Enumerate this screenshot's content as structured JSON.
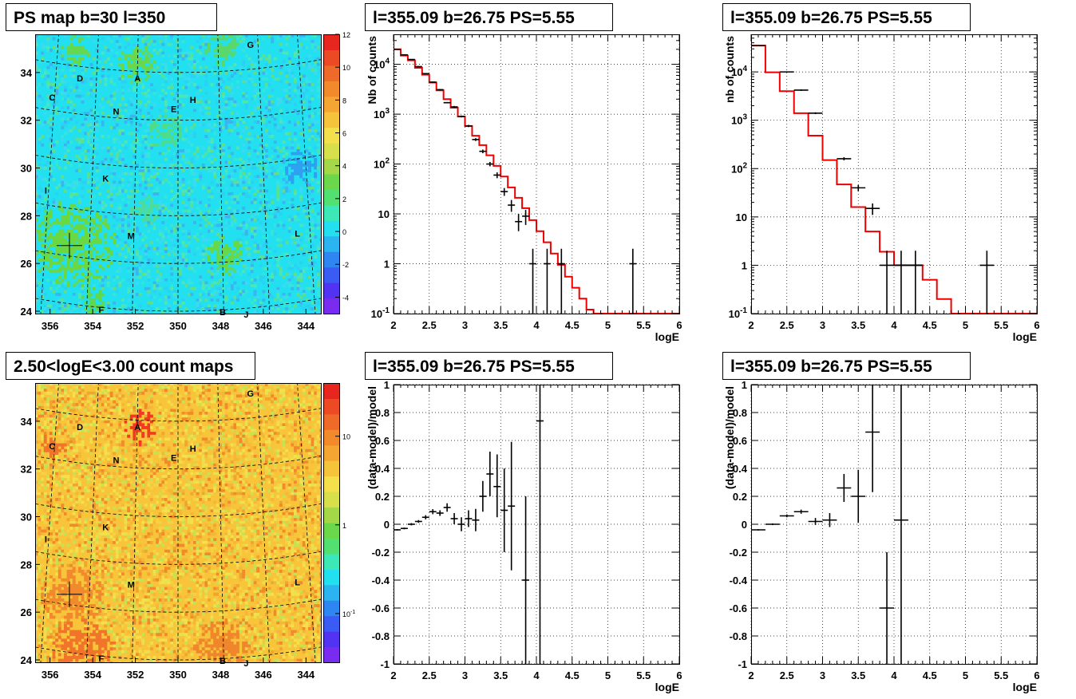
{
  "chart_data": [
    {
      "type": "heatmap",
      "title": "PS map b=30 l=350",
      "x_ticks": [
        "356",
        "354",
        "352",
        "350",
        "348",
        "346",
        "344"
      ],
      "y_ticks": [
        "24",
        "26",
        "28",
        "30",
        "32",
        "34"
      ],
      "colorbar_ticks": [
        "-4",
        "-2",
        "0",
        "2",
        "4",
        "6",
        "8",
        "10",
        "12"
      ],
      "colorbar_range": [
        -5,
        12
      ],
      "xlim": [
        356.7,
        343.3
      ],
      "ylim": [
        23.9,
        35.6
      ],
      "background_color": "#22e0f0",
      "sources": [
        {
          "label": "A",
          "l": 351.9,
          "b": 33.8
        },
        {
          "label": "B",
          "l": 347.9,
          "b": 24.0
        },
        {
          "label": "C",
          "l": 355.9,
          "b": 33.0
        },
        {
          "label": "D",
          "l": 354.6,
          "b": 33.8
        },
        {
          "label": "E",
          "l": 350.2,
          "b": 32.5
        },
        {
          "label": "F",
          "l": 353.6,
          "b": 24.1
        },
        {
          "label": "G",
          "l": 346.6,
          "b": 35.2
        },
        {
          "label": "H",
          "l": 349.3,
          "b": 32.9
        },
        {
          "label": "I",
          "l": 356.2,
          "b": 29.1
        },
        {
          "label": "J",
          "l": 346.8,
          "b": 23.9
        },
        {
          "label": "K",
          "l": 353.4,
          "b": 29.6
        },
        {
          "label": "L",
          "l": 344.4,
          "b": 27.3
        },
        {
          "label": "M",
          "l": 352.2,
          "b": 27.2
        },
        {
          "label": "N",
          "l": 352.9,
          "b": 32.4
        }
      ],
      "marker": {
        "l": 355.09,
        "b": 26.75
      }
    },
    {
      "type": "line",
      "title": "l=355.09 b=26.75 PS=5.55",
      "xlabel": "logE",
      "ylabel": "Nb of counts",
      "xlim": [
        2,
        6
      ],
      "ylim": [
        0.1,
        40000
      ],
      "yscale": "log",
      "x_ticks": [
        "2",
        "2.5",
        "3",
        "3.5",
        "4",
        "4.5",
        "5",
        "5.5",
        "6"
      ],
      "y_ticks": [
        {
          "v": 0.1,
          "label": "10^-1"
        },
        {
          "v": 1,
          "label": "1"
        },
        {
          "v": 10,
          "label": "10"
        },
        {
          "v": 100,
          "label": "10^2"
        },
        {
          "v": 1000,
          "label": "10^3"
        },
        {
          "v": 10000,
          "label": "10^4"
        }
      ],
      "model_bin_width": 0.1,
      "model": [
        20000,
        15000,
        12000,
        8500,
        6200,
        4300,
        3000,
        2000,
        1350,
        900,
        580,
        370,
        240,
        150,
        92,
        56,
        34,
        21,
        13,
        7.5,
        4.5,
        2.7,
        1.6,
        0.95,
        0.55,
        0.33,
        0.2,
        0.12,
        0.1,
        0.1,
        0.1,
        0.1,
        0.1,
        0.1,
        0.1,
        0.1,
        0.1,
        0.1,
        0.1,
        0.1
      ],
      "data": [
        {
          "x": 2.05,
          "y": 20000,
          "ylo": 19800,
          "yhi": 20200
        },
        {
          "x": 2.15,
          "y": 15500,
          "ylo": 15300,
          "yhi": 15700
        },
        {
          "x": 2.25,
          "y": 12500,
          "ylo": 12300,
          "yhi": 12700
        },
        {
          "x": 2.35,
          "y": 9000,
          "ylo": 8800,
          "yhi": 9200
        },
        {
          "x": 2.45,
          "y": 6500,
          "ylo": 6350,
          "yhi": 6650
        },
        {
          "x": 2.55,
          "y": 4400,
          "ylo": 4280,
          "yhi": 4520
        },
        {
          "x": 2.65,
          "y": 3100,
          "ylo": 3000,
          "yhi": 3200
        },
        {
          "x": 2.75,
          "y": 1700,
          "ylo": 1650,
          "yhi": 1750
        },
        {
          "x": 2.85,
          "y": 1400,
          "ylo": 1340,
          "yhi": 1460
        },
        {
          "x": 2.95,
          "y": 900,
          "ylo": 860,
          "yhi": 940
        },
        {
          "x": 3.05,
          "y": 580,
          "ylo": 550,
          "yhi": 610
        },
        {
          "x": 3.15,
          "y": 310,
          "ylo": 290,
          "yhi": 330
        },
        {
          "x": 3.25,
          "y": 180,
          "ylo": 165,
          "yhi": 195
        },
        {
          "x": 3.35,
          "y": 100,
          "ylo": 90,
          "yhi": 110
        },
        {
          "x": 3.45,
          "y": 60,
          "ylo": 52,
          "yhi": 68
        },
        {
          "x": 3.55,
          "y": 28,
          "ylo": 23,
          "yhi": 33
        },
        {
          "x": 3.65,
          "y": 15,
          "ylo": 11,
          "yhi": 19
        },
        {
          "x": 3.75,
          "y": 7,
          "ylo": 4.5,
          "yhi": 10
        },
        {
          "x": 3.85,
          "y": 9,
          "ylo": 6,
          "yhi": 12
        },
        {
          "x": 3.95,
          "y": 1,
          "ylo": 0.1,
          "yhi": 2
        },
        {
          "x": 4.15,
          "y": 1,
          "ylo": 0.1,
          "yhi": 2
        },
        {
          "x": 4.35,
          "y": 1,
          "ylo": 0.1,
          "yhi": 2
        },
        {
          "x": 5.35,
          "y": 1,
          "ylo": 0.1,
          "yhi": 2
        }
      ]
    },
    {
      "type": "line",
      "title": "l=355.09 b=26.75 PS=5.55",
      "xlabel": "logE",
      "ylabel": "nb of counts",
      "xlim": [
        2,
        6
      ],
      "ylim": [
        0.1,
        60000
      ],
      "yscale": "log",
      "x_ticks": [
        "2",
        "2.5",
        "3",
        "3.5",
        "4",
        "4.5",
        "5",
        "5.5",
        "6"
      ],
      "y_ticks": [
        {
          "v": 0.1,
          "label": "10^-1"
        },
        {
          "v": 1,
          "label": "1"
        },
        {
          "v": 10,
          "label": "10"
        },
        {
          "v": 100,
          "label": "10^2"
        },
        {
          "v": 1000,
          "label": "10^3"
        },
        {
          "v": 10000,
          "label": "10^4"
        }
      ],
      "model_bin_width": 0.2,
      "model": [
        35000,
        9800,
        4000,
        1400,
        480,
        150,
        47,
        16,
        5,
        1.9,
        1,
        1,
        0.5,
        0.2,
        0.1,
        0.1,
        0.1,
        0.1,
        0.1,
        0.1
      ],
      "data": [
        {
          "x": 2.1,
          "y": 35000,
          "ylo": 34500,
          "yhi": 35500
        },
        {
          "x": 2.5,
          "y": 10000,
          "ylo": 9800,
          "yhi": 10200
        },
        {
          "x": 2.7,
          "y": 4200,
          "ylo": 4050,
          "yhi": 4350
        },
        {
          "x": 2.9,
          "y": 1400,
          "ylo": 1340,
          "yhi": 1460
        },
        {
          "x": 3.3,
          "y": 160,
          "ylo": 148,
          "yhi": 172
        },
        {
          "x": 3.5,
          "y": 40,
          "ylo": 34,
          "yhi": 46
        },
        {
          "x": 3.7,
          "y": 15,
          "ylo": 11,
          "yhi": 19
        },
        {
          "x": 3.9,
          "y": 1,
          "ylo": 0.1,
          "yhi": 2
        },
        {
          "x": 4.1,
          "y": 1,
          "ylo": 0.1,
          "yhi": 2
        },
        {
          "x": 4.3,
          "y": 1,
          "ylo": 0.1,
          "yhi": 2
        },
        {
          "x": 5.3,
          "y": 1,
          "ylo": 0.1,
          "yhi": 2
        }
      ]
    },
    {
      "type": "heatmap",
      "title": "2.50<logE<3.00 count maps",
      "x_ticks": [
        "356",
        "354",
        "352",
        "350",
        "348",
        "346",
        "344"
      ],
      "y_ticks": [
        "24",
        "26",
        "28",
        "30",
        "32",
        "34"
      ],
      "colorbar_ticks": [
        "10",
        "1",
        "10^-1"
      ],
      "colorbar_scale": "log",
      "xlim": [
        356.7,
        343.3
      ],
      "ylim": [
        23.9,
        35.6
      ],
      "background_color": "#f7c43a",
      "sources": [
        {
          "label": "A",
          "l": 351.9,
          "b": 33.8
        },
        {
          "label": "B",
          "l": 347.9,
          "b": 24.0
        },
        {
          "label": "C",
          "l": 355.9,
          "b": 33.0
        },
        {
          "label": "D",
          "l": 354.6,
          "b": 33.8
        },
        {
          "label": "E",
          "l": 350.2,
          "b": 32.5
        },
        {
          "label": "F",
          "l": 353.6,
          "b": 24.1
        },
        {
          "label": "G",
          "l": 346.6,
          "b": 35.2
        },
        {
          "label": "H",
          "l": 349.3,
          "b": 32.9
        },
        {
          "label": "I",
          "l": 356.2,
          "b": 29.1
        },
        {
          "label": "J",
          "l": 346.8,
          "b": 23.9
        },
        {
          "label": "K",
          "l": 353.4,
          "b": 29.6
        },
        {
          "label": "L",
          "l": 344.4,
          "b": 27.3
        },
        {
          "label": "M",
          "l": 352.2,
          "b": 27.2
        },
        {
          "label": "N",
          "l": 352.9,
          "b": 32.4
        }
      ],
      "marker": {
        "l": 355.09,
        "b": 26.75
      }
    },
    {
      "type": "scatter",
      "title": "l=355.09 b=26.75 PS=5.55",
      "xlabel": "logE",
      "ylabel": "(data-model)/model",
      "xlim": [
        2,
        6
      ],
      "ylim": [
        -1,
        1
      ],
      "x_ticks": [
        "2",
        "2.5",
        "3",
        "3.5",
        "4",
        "4.5",
        "5",
        "5.5",
        "6"
      ],
      "y_ticks": [
        "-1",
        "-0.8",
        "-0.6",
        "-0.4",
        "-0.2",
        "0",
        "0.2",
        "0.4",
        "0.6",
        "0.8",
        "1"
      ],
      "bin_width": 0.1,
      "data": [
        {
          "x": 2.05,
          "y": -0.04,
          "ylo": -0.045,
          "yhi": -0.035
        },
        {
          "x": 2.15,
          "y": -0.03,
          "ylo": -0.036,
          "yhi": -0.024
        },
        {
          "x": 2.25,
          "y": 0.0,
          "ylo": -0.008,
          "yhi": 0.008
        },
        {
          "x": 2.35,
          "y": 0.02,
          "ylo": 0.01,
          "yhi": 0.03
        },
        {
          "x": 2.45,
          "y": 0.05,
          "ylo": 0.035,
          "yhi": 0.065
        },
        {
          "x": 2.55,
          "y": 0.09,
          "ylo": 0.072,
          "yhi": 0.108
        },
        {
          "x": 2.65,
          "y": 0.08,
          "ylo": 0.06,
          "yhi": 0.1
        },
        {
          "x": 2.75,
          "y": 0.12,
          "ylo": 0.09,
          "yhi": 0.15
        },
        {
          "x": 2.85,
          "y": 0.04,
          "ylo": 0.0,
          "yhi": 0.08
        },
        {
          "x": 2.95,
          "y": 0.0,
          "ylo": -0.05,
          "yhi": 0.05
        },
        {
          "x": 3.05,
          "y": 0.04,
          "ylo": -0.02,
          "yhi": 0.1
        },
        {
          "x": 3.15,
          "y": 0.03,
          "ylo": -0.05,
          "yhi": 0.11
        },
        {
          "x": 3.25,
          "y": 0.2,
          "ylo": 0.09,
          "yhi": 0.31
        },
        {
          "x": 3.35,
          "y": 0.36,
          "ylo": 0.2,
          "yhi": 0.52
        },
        {
          "x": 3.45,
          "y": 0.27,
          "ylo": 0.05,
          "yhi": 0.5
        },
        {
          "x": 3.55,
          "y": 0.1,
          "ylo": -0.2,
          "yhi": 0.4
        },
        {
          "x": 3.65,
          "y": 0.13,
          "ylo": -0.33,
          "yhi": 0.59
        },
        {
          "x": 3.85,
          "y": -0.4,
          "ylo": -1.0,
          "yhi": 0.2
        },
        {
          "x": 4.05,
          "y": 0.74,
          "ylo": -1.0,
          "yhi": 1.0
        }
      ]
    },
    {
      "type": "scatter",
      "title": "l=355.09 b=26.75 PS=5.55",
      "xlabel": "logE",
      "ylabel": "(data-model)/model",
      "xlim": [
        2,
        6
      ],
      "ylim": [
        -1,
        1
      ],
      "x_ticks": [
        "2",
        "2.5",
        "3",
        "3.5",
        "4",
        "4.5",
        "5",
        "5.5",
        "6"
      ],
      "y_ticks": [
        "-1",
        "-0.8",
        "-0.6",
        "-0.4",
        "-0.2",
        "0",
        "0.2",
        "0.4",
        "0.6",
        "0.8",
        "1"
      ],
      "bin_width": 0.2,
      "data": [
        {
          "x": 2.1,
          "y": -0.04,
          "ylo": -0.045,
          "yhi": -0.035
        },
        {
          "x": 2.3,
          "y": 0.0,
          "ylo": -0.006,
          "yhi": 0.006
        },
        {
          "x": 2.5,
          "y": 0.06,
          "ylo": 0.05,
          "yhi": 0.07
        },
        {
          "x": 2.7,
          "y": 0.09,
          "ylo": 0.075,
          "yhi": 0.105
        },
        {
          "x": 2.9,
          "y": 0.02,
          "ylo": -0.005,
          "yhi": 0.045
        },
        {
          "x": 3.1,
          "y": 0.03,
          "ylo": -0.02,
          "yhi": 0.08
        },
        {
          "x": 3.3,
          "y": 0.26,
          "ylo": 0.16,
          "yhi": 0.36
        },
        {
          "x": 3.5,
          "y": 0.2,
          "ylo": 0.01,
          "yhi": 0.39
        },
        {
          "x": 3.7,
          "y": 0.66,
          "ylo": 0.23,
          "yhi": 1.0
        },
        {
          "x": 3.9,
          "y": -0.6,
          "ylo": -1.0,
          "yhi": -0.2
        },
        {
          "x": 4.1,
          "y": 0.03,
          "ylo": -1.0,
          "yhi": 1.0
        }
      ]
    }
  ]
}
